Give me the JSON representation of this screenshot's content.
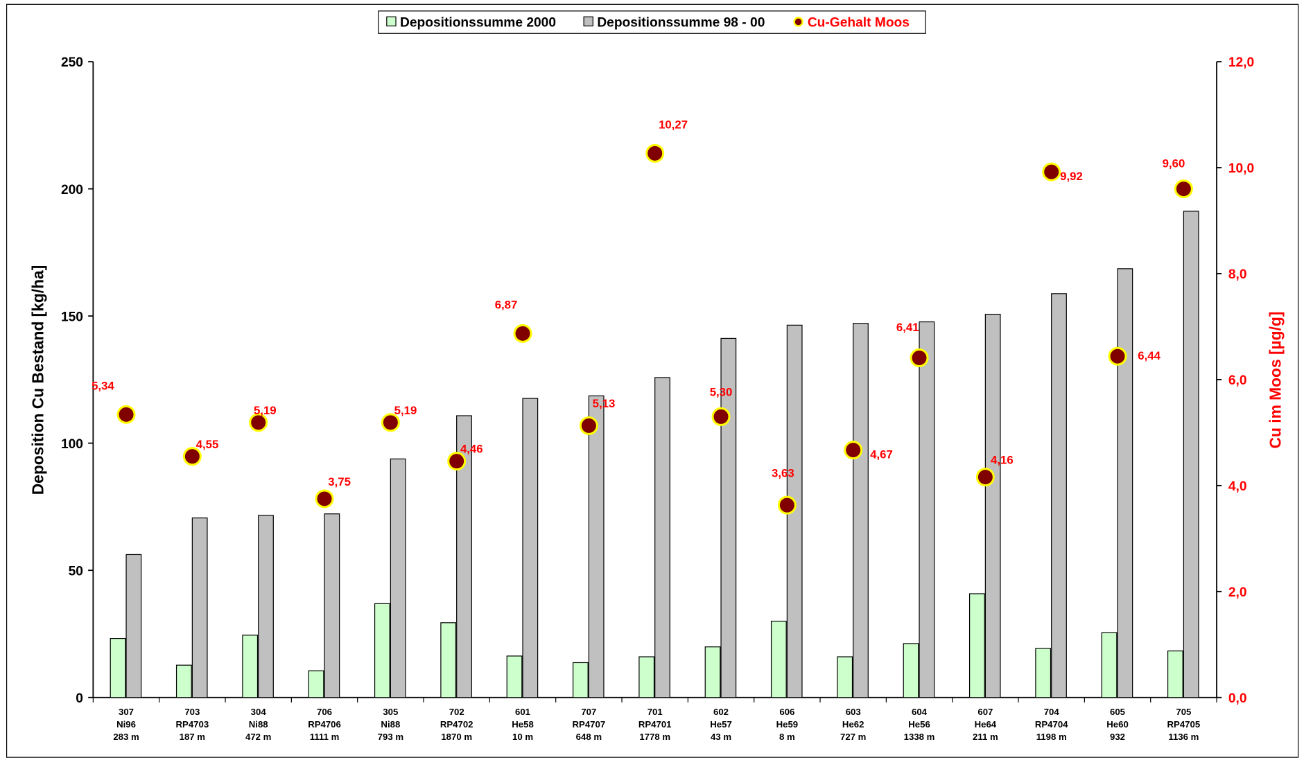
{
  "chart_data": {
    "type": "bar",
    "categories": [
      [
        "307",
        "Ni96",
        "283 m"
      ],
      [
        "703",
        "RP4703",
        "187 m"
      ],
      [
        "304",
        "Ni88",
        "472 m"
      ],
      [
        "706",
        "RP4706",
        "1111 m"
      ],
      [
        "305",
        "Ni88",
        "793 m"
      ],
      [
        "702",
        "RP4702",
        "1870 m"
      ],
      [
        "601",
        "He58",
        "10 m"
      ],
      [
        "707",
        "RP4707",
        "648 m"
      ],
      [
        "701",
        "RP4701",
        "1778 m"
      ],
      [
        "602",
        "He57",
        "43 m"
      ],
      [
        "606",
        "He59",
        "8 m"
      ],
      [
        "603",
        "He62",
        "727 m"
      ],
      [
        "604",
        "He56",
        "1338 m"
      ],
      [
        "607",
        "He64",
        "211 m"
      ],
      [
        "704",
        "RP4704",
        "1198 m"
      ],
      [
        "605",
        "He60",
        "932"
      ],
      [
        "705",
        "RP4705",
        "1136 m"
      ]
    ],
    "series": [
      {
        "name": "Depositionssumme 2000",
        "color": "#ccffcc",
        "values": [
          23.2,
          12.7,
          24.5,
          10.5,
          36.9,
          29.4,
          16.3,
          13.7,
          16,
          19.9,
          30,
          16,
          21.2,
          40.8,
          19.3,
          25.5,
          18.3
        ]
      },
      {
        "name": "Depositionssumme 98 - 00",
        "color": "#c0c0c0",
        "values": [
          56.2,
          70.6,
          71.6,
          72.2,
          93.8,
          110.8,
          117.6,
          118.6,
          125.8,
          141.2,
          146.4,
          147.1,
          147.7,
          150.7,
          158.8,
          168.6,
          191.2
        ]
      },
      {
        "name": "Cu-Gehalt Moos",
        "color": "#800000",
        "axis": "y2",
        "values": [
          5.34,
          4.55,
          5.19,
          3.75,
          5.19,
          4.46,
          6.87,
          5.13,
          10.27,
          5.3,
          3.63,
          4.67,
          6.41,
          4.16,
          9.92,
          6.44,
          9.6
        ],
        "value_labels": [
          "5,34",
          "4,55",
          "5,19",
          "3,75",
          "5,19",
          "4,46",
          "6,87",
          "5,13",
          "10,27",
          "5,30",
          "3,63",
          "4,67",
          "6,41",
          "4,16",
          "9,92",
          "6,44",
          "9,60"
        ]
      }
    ],
    "ylabel": "Deposition Cu Bestand [kg/ha]",
    "y2label": "Cu im Moos [µg/g]",
    "ylim": [
      0,
      250
    ],
    "yticks": [
      0,
      50,
      100,
      150,
      200,
      250
    ],
    "y2lim": [
      0,
      12
    ],
    "y2ticks": [
      {
        "value": 0,
        "label": "0,0"
      },
      {
        "value": 2,
        "label": "2,0"
      },
      {
        "value": 4,
        "label": "4,0"
      },
      {
        "value": 6,
        "label": "6,0"
      },
      {
        "value": 8,
        "label": "8,0"
      },
      {
        "value": 10,
        "label": "10,0"
      },
      {
        "value": 12,
        "label": "12,0"
      }
    ],
    "legend": "top"
  }
}
